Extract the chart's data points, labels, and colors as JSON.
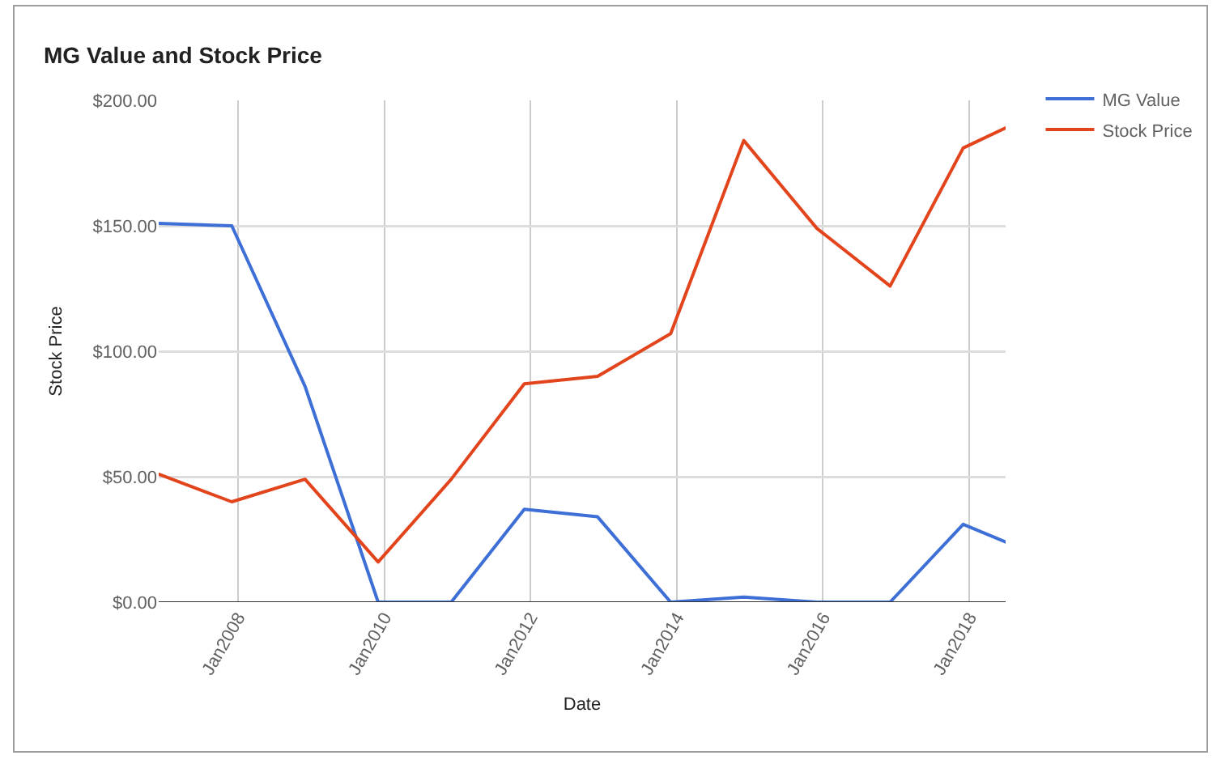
{
  "chart_data": {
    "type": "line",
    "title": "MG Value and Stock Price",
    "xlabel": "Date",
    "ylabel": "Stock Price",
    "x": [
      "2006-12",
      "2007-12",
      "2008-12",
      "2009-12",
      "2010-12",
      "2011-12",
      "2012-12",
      "2013-12",
      "2014-12",
      "2015-12",
      "2016-12",
      "2017-12",
      "2018-07"
    ],
    "series": [
      {
        "name": "MG Value",
        "color": "#3d6fd6",
        "values": [
          151,
          150,
          86,
          0,
          0,
          37,
          34,
          0,
          2,
          0,
          0,
          31,
          24
        ]
      },
      {
        "name": "Stock Price",
        "color": "#e2441c",
        "values": [
          51,
          40,
          49,
          16,
          49,
          87,
          90,
          107,
          184,
          149,
          126,
          181,
          189
        ]
      }
    ],
    "xlim": [
      "2006-12",
      "2018-07"
    ],
    "xticks": [
      {
        "value": "2008-01",
        "label": "Jan2008"
      },
      {
        "value": "2010-01",
        "label": "Jan2010"
      },
      {
        "value": "2012-01",
        "label": "Jan2012"
      },
      {
        "value": "2014-01",
        "label": "Jan2014"
      },
      {
        "value": "2016-01",
        "label": "Jan2016"
      },
      {
        "value": "2018-01",
        "label": "Jan2018"
      }
    ],
    "ylim": [
      0,
      200
    ],
    "yticks": [
      {
        "value": 0,
        "label": "$0.00"
      },
      {
        "value": 50,
        "label": "$50.00"
      },
      {
        "value": 100,
        "label": "$100.00"
      },
      {
        "value": 150,
        "label": "$150.00"
      },
      {
        "value": 200,
        "label": "$200.00"
      }
    ],
    "grid": true,
    "legend": "top right",
    "line_style": "solid"
  }
}
